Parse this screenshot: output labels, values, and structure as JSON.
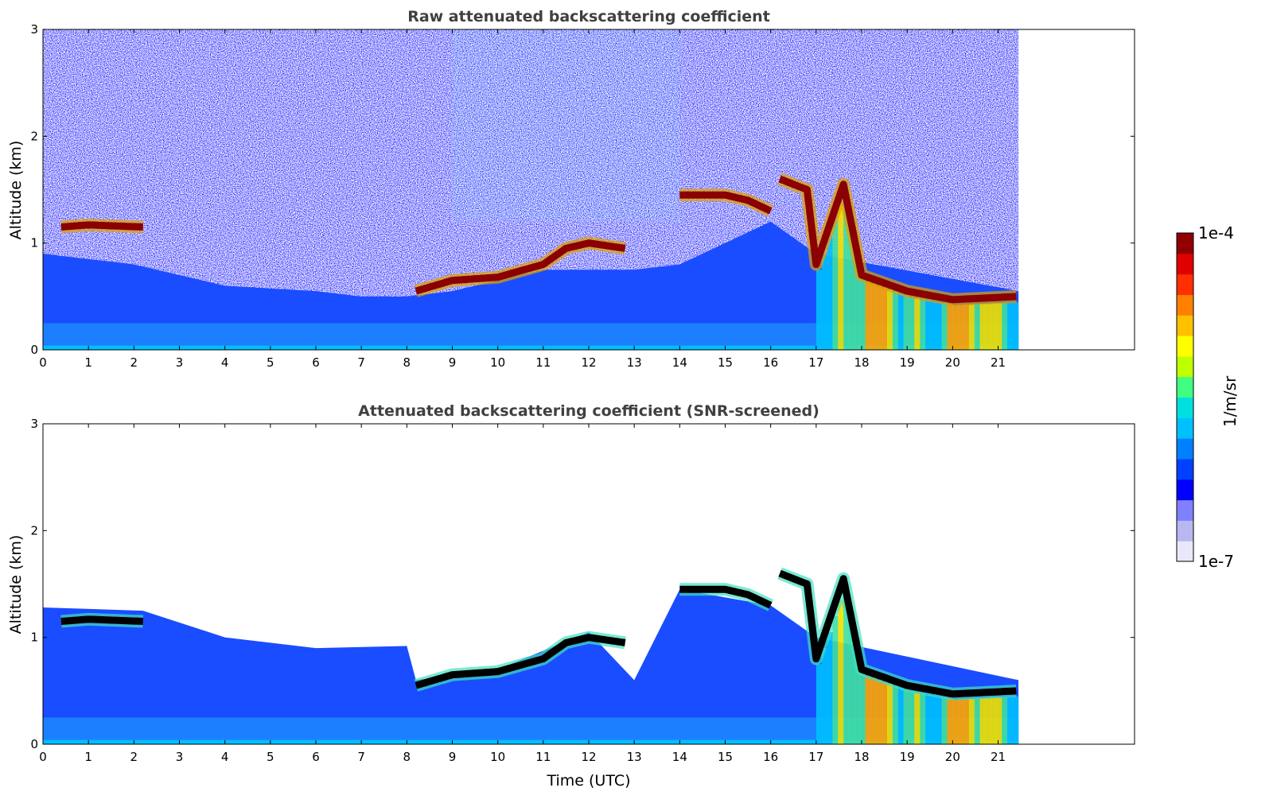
{
  "chart_data": [
    {
      "type": "heatmap",
      "title": "Raw attenuated backscattering coefficient",
      "xlabel": "",
      "ylabel": "Altitude (km)",
      "xlim": [
        0,
        24
      ],
      "ylim": [
        0,
        3
      ],
      "xticks": [
        "0",
        "1",
        "2",
        "3",
        "4",
        "5",
        "6",
        "7",
        "8",
        "9",
        "10",
        "11",
        "12",
        "13",
        "14",
        "15",
        "16",
        "17",
        "18",
        "19",
        "20",
        "21"
      ],
      "yticks": [
        "0",
        "1",
        "2",
        "3"
      ],
      "data_end_time": 21.45,
      "cloud_layer": [
        [
          0.4,
          1.15
        ],
        [
          1.0,
          1.17
        ],
        [
          2.2,
          1.15
        ],
        [
          8.2,
          0.55
        ],
        [
          9.0,
          0.65
        ],
        [
          10.0,
          0.68
        ],
        [
          11.0,
          0.8
        ],
        [
          11.5,
          0.95
        ],
        [
          12.0,
          1.0
        ],
        [
          12.8,
          0.95
        ],
        [
          14.0,
          1.45
        ],
        [
          15.0,
          1.45
        ],
        [
          15.5,
          1.4
        ],
        [
          16.0,
          1.3
        ],
        [
          16.2,
          1.6
        ],
        [
          16.8,
          1.5
        ],
        [
          17.0,
          0.8
        ],
        [
          17.6,
          1.55
        ],
        [
          18.0,
          0.7
        ],
        [
          19.0,
          0.55
        ],
        [
          20.0,
          0.47
        ],
        [
          21.45,
          0.5
        ]
      ],
      "noisy_background": true
    },
    {
      "type": "heatmap",
      "title": "Attenuated backscattering coefficient (SNR-screened)",
      "xlabel": "Time (UTC)",
      "ylabel": "Altitude (km)",
      "xlim": [
        0,
        24
      ],
      "ylim": [
        0,
        3
      ],
      "xticks": [
        "0",
        "1",
        "2",
        "3",
        "4",
        "5",
        "6",
        "7",
        "8",
        "9",
        "10",
        "11",
        "12",
        "13",
        "14",
        "15",
        "16",
        "17",
        "18",
        "19",
        "20",
        "21"
      ],
      "yticks": [
        "0",
        "1",
        "2",
        "3"
      ],
      "data_end_time": 21.45,
      "cloud_layer": [
        [
          0.4,
          1.15
        ],
        [
          1.0,
          1.17
        ],
        [
          2.2,
          1.15
        ],
        [
          8.2,
          0.55
        ],
        [
          9.0,
          0.65
        ],
        [
          10.0,
          0.68
        ],
        [
          11.0,
          0.8
        ],
        [
          11.5,
          0.95
        ],
        [
          12.0,
          1.0
        ],
        [
          12.8,
          0.95
        ],
        [
          14.0,
          1.45
        ],
        [
          15.0,
          1.45
        ],
        [
          15.5,
          1.4
        ],
        [
          16.0,
          1.3
        ],
        [
          16.2,
          1.6
        ],
        [
          16.8,
          1.5
        ],
        [
          17.0,
          0.8
        ],
        [
          17.6,
          1.55
        ],
        [
          18.0,
          0.7
        ],
        [
          19.0,
          0.55
        ],
        [
          20.0,
          0.47
        ],
        [
          21.45,
          0.5
        ]
      ],
      "noisy_background": false
    }
  ],
  "colorbar": {
    "label": "1/m/sr",
    "max_label": "1e-4",
    "min_label": "1e-7",
    "colors": [
      "#e8e8f8",
      "#b8b8f0",
      "#8080ff",
      "#0000ff",
      "#0040ff",
      "#0080ff",
      "#00c0ff",
      "#00e0e0",
      "#40ff80",
      "#c0ff00",
      "#ffff00",
      "#ffc000",
      "#ff8000",
      "#ff3000",
      "#e00000",
      "#900000"
    ]
  }
}
